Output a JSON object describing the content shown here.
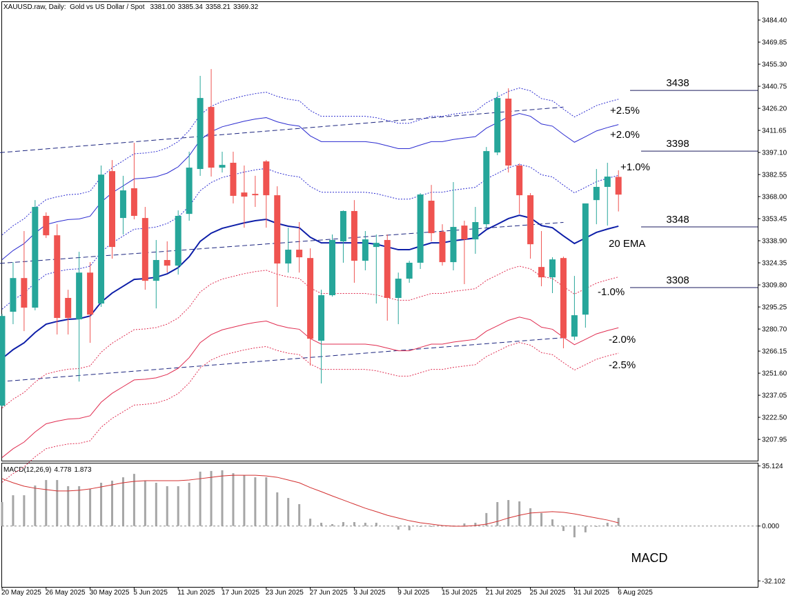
{
  "chart_data": [
    {
      "type": "candlestick",
      "title": "XAUUSD.raw, Daily:  Gold vs US Dollar / Spot",
      "quote_labels": [
        "3381.00",
        "3385.34",
        "3358.21",
        "3369.32"
      ],
      "categories": [
        "20 May 2025",
        null,
        null,
        null,
        "26 May 2025",
        null,
        null,
        null,
        "30 May 2025",
        null,
        null,
        null,
        "5 Jun 2025",
        null,
        null,
        null,
        "11 Jun 2025",
        null,
        null,
        null,
        "17 Jun 2025",
        null,
        null,
        null,
        "23 Jun 2025",
        null,
        null,
        null,
        "27 Jun 2025",
        null,
        null,
        null,
        "3 Jul 2025",
        null,
        null,
        null,
        "9 Jul 2025",
        null,
        null,
        null,
        "15 Jul 2025",
        null,
        null,
        null,
        "21 Jul 2025",
        null,
        null,
        null,
        "25 Jul 2025",
        null,
        null,
        null,
        "31 Jul 2025",
        null,
        null,
        null,
        "6 Aug 2025"
      ],
      "series": [
        {
          "up_color": "#26a69a",
          "down_color": "#ef5350",
          "open": [
            3230.2,
            3292.1,
            3314.3,
            3294.8,
            3355.3,
            3342.5,
            3301.2,
            3287.1,
            3317.9,
            3297.5,
            3384.8,
            3353.9,
            3373.5,
            3353.9,
            3312.5,
            3326.2,
            3322.5,
            3356.6,
            3386.2,
            3427.1,
            3387.1,
            3390.3,
            3370.7,
            3369.8,
            3391.2,
            3368.9,
            3323.9,
            3333.0,
            3327.5,
            3273.0,
            3303.0,
            3338.5,
            3358.5,
            3325.7,
            3334.8,
            3339.4,
            3301.2,
            3313.9,
            3324.4,
            3365.3,
            3344.8,
            3324.8,
            3348.9,
            3339.8,
            3349.8,
            3397.1,
            3432.6,
            3388.5,
            3368.9,
            3321.6,
            3314.8,
            3327.5,
            3275.7,
            3290.2,
            3365.7,
            3374.4,
            3381.0
          ],
          "high": [
            3290.7,
            3324.8,
            3345.3,
            3365.7,
            3357.6,
            3349.8,
            3306.6,
            3331.6,
            3324.8,
            3388.5,
            3392.1,
            3381.7,
            3403.5,
            3361.2,
            3339.4,
            3338.5,
            3358.9,
            3397.6,
            3447.6,
            3452.1,
            3397.6,
            3397.6,
            3388.5,
            3381.7,
            3392.1,
            3374.8,
            3347.5,
            3351.2,
            3333.9,
            3306.6,
            3343.0,
            3358.9,
            3365.7,
            3345.3,
            3343.0,
            3343.0,
            3317.9,
            3325.7,
            3370.3,
            3375.7,
            3349.8,
            3377.6,
            3352.1,
            3361.2,
            3400.7,
            3437.1,
            3439.4,
            3389.8,
            3370.3,
            3345.3,
            3328.0,
            3328.4,
            3315.7,
            3363.5,
            3386.2,
            3390.3,
            3385.34
          ],
          "low": [
            3229.3,
            3283.9,
            3279.3,
            3293.0,
            3340.7,
            3277.1,
            3277.1,
            3246.1,
            3271.6,
            3295.3,
            3327.1,
            3343.0,
            3353.0,
            3306.6,
            3294.3,
            3317.9,
            3316.6,
            3352.1,
            3381.7,
            3381.2,
            3383.9,
            3363.5,
            3347.5,
            3361.2,
            3347.5,
            3295.3,
            3317.9,
            3317.9,
            3256.6,
            3244.8,
            3302.1,
            3324.4,
            3311.2,
            3319.4,
            3297.5,
            3286.2,
            3283.9,
            3311.2,
            3320.3,
            3338.5,
            3322.5,
            3319.4,
            3310.3,
            3330.3,
            3347.5,
            3395.3,
            3383.9,
            3356.6,
            3327.1,
            3308.9,
            3304.4,
            3268.0,
            3273.4,
            3281.6,
            3349.8,
            3348.9,
            3358.21
          ],
          "close": [
            3289.3,
            3314.3,
            3294.8,
            3361.2,
            3342.5,
            3288.0,
            3288.0,
            3317.9,
            3290.2,
            3382.5,
            3334.8,
            3372.1,
            3355.3,
            3312.5,
            3326.2,
            3322.5,
            3355.3,
            3387.1,
            3433.0,
            3387.1,
            3388.9,
            3368.5,
            3368.0,
            3368.9,
            3368.9,
            3323.9,
            3333.0,
            3328.0,
            3274.3,
            3303.0,
            3339.4,
            3358.5,
            3325.7,
            3339.8,
            3337.5,
            3301.2,
            3313.9,
            3324.4,
            3369.4,
            3343.9,
            3324.8,
            3348.0,
            3339.8,
            3351.2,
            3398.0,
            3433.0,
            3388.5,
            3368.9,
            3336.6,
            3314.8,
            3326.6,
            3274.8,
            3289.8,
            3363.5,
            3374.4,
            3381.2,
            3369.32
          ]
        }
      ],
      "ema": {
        "name": "20 EMA",
        "color": "#0d1ea8",
        "values": [
          3261.2,
          3267.1,
          3271.6,
          3278.4,
          3283.9,
          3285.7,
          3287.1,
          3287.5,
          3289.3,
          3298.4,
          3304.4,
          3308.9,
          3313.4,
          3313.9,
          3314.8,
          3317.1,
          3321.2,
          3328.4,
          3338.5,
          3343.9,
          3347.1,
          3348.9,
          3350.7,
          3352.1,
          3353.0,
          3350.3,
          3348.5,
          3347.5,
          3341.2,
          3337.5,
          3337.5,
          3337.5,
          3337.5,
          3337.5,
          3336.6,
          3334.8,
          3333.0,
          3333.0,
          3335.3,
          3337.5,
          3337.5,
          3338.9,
          3339.8,
          3340.7,
          3346.2,
          3349.8,
          3353.5,
          3355.7,
          3353.9,
          3348.9,
          3347.5,
          3342.1,
          3337.1,
          3340.7,
          3344.4,
          3346.6,
          3348.5
        ]
      },
      "envelopes": [
        {
          "pct": 2.5,
          "label": "+2.5%",
          "color": "#2a2ad0",
          "dash": "dotted"
        },
        {
          "pct": 2.0,
          "label": "+2.0%",
          "color": "#2a2ad0",
          "dash": "solid"
        },
        {
          "pct": 1.0,
          "label": "+1.0%",
          "color": "#2a2ad0",
          "dash": "dotted"
        },
        {
          "pct": -1.0,
          "label": "-1.0%",
          "color": "#e02b4f",
          "dash": "dotted"
        },
        {
          "pct": -2.0,
          "label": "-2.0%",
          "color": "#e02b4f",
          "dash": "solid"
        },
        {
          "pct": -2.5,
          "label": "-2.5%",
          "color": "#e02b4f",
          "dash": "dotted"
        }
      ],
      "trendlines": [
        {
          "x": [
            0,
            51
          ],
          "values": [
            3397,
            3427
          ]
        },
        {
          "x": [
            0,
            51
          ],
          "values": [
            3324,
            3351
          ]
        },
        {
          "x": [
            0,
            51
          ],
          "values": [
            3246,
            3275
          ]
        }
      ],
      "levels": [
        3438,
        3398,
        3348,
        3308
      ],
      "ylim": [
        3193.9,
        3496.7
      ],
      "yticks": [
        {
          "value": 3484.4,
          "label": "3484.40"
        },
        {
          "value": 3469.85,
          "label": "3469.85"
        },
        {
          "value": 3455.3,
          "label": "3455.30"
        },
        {
          "value": 3440.75,
          "label": "3440.75"
        },
        {
          "value": 3426.2,
          "label": "3426.20"
        },
        {
          "value": 3411.65,
          "label": "3411.65"
        },
        {
          "value": 3397.1,
          "label": "3397.10"
        },
        {
          "value": 3382.55,
          "label": "3382.55"
        },
        {
          "value": 3368,
          "label": "3368.00"
        },
        {
          "value": 3353.45,
          "label": "3353.45"
        },
        {
          "value": 3338.9,
          "label": "3338.90"
        },
        {
          "value": 3324.35,
          "label": "3324.35"
        },
        {
          "value": 3309.8,
          "label": "3309.80"
        },
        {
          "value": 3295.25,
          "label": "3295.25"
        },
        {
          "value": 3280.7,
          "label": "3280.70"
        },
        {
          "value": 3266.15,
          "label": "3266.15"
        },
        {
          "value": 3251.6,
          "label": "3251.60"
        },
        {
          "value": 3237.05,
          "label": "3237.05"
        },
        {
          "value": 3222.5,
          "label": "3222.50"
        },
        {
          "value": 3207.95,
          "label": "3207.95"
        }
      ]
    },
    {
      "type": "macd",
      "title": "MACD(12,26,9)",
      "annotation": "MACD",
      "series": [
        {
          "color": "#a6a6a6",
          "values": [
            14.0,
            18.0,
            18.0,
            23.7,
            26.9,
            26.9,
            23.3,
            23.3,
            21.7,
            25.3,
            26.5,
            28.5,
            30.5,
            26.5,
            25.3,
            23.3,
            23.3,
            25.3,
            31.8,
            32.2,
            32.6,
            30.9,
            29.7,
            28.5,
            28.5,
            19.7,
            16.4,
            12.8,
            4.3,
            1.9,
            1.1,
            2.3,
            2.3,
            1.9,
            1.9,
            0.2,
            -2.1,
            -2.5,
            -0.5,
            -0.5,
            -0.1,
            0.3,
            1.5,
            1.9,
            7.6,
            14.0,
            15.2,
            14.4,
            10.4,
            7.6,
            3.9,
            -2.9,
            -6.6,
            -3.7,
            -0.5,
            1.9,
            4.778
          ]
        },
        {
          "color": "#d32f2f",
          "values": [
            27.7,
            25.3,
            23.3,
            22.1,
            21.3,
            20.5,
            20.5,
            20.9,
            21.7,
            22.9,
            24.1,
            25.3,
            26.1,
            26.5,
            26.5,
            26.5,
            26.5,
            26.9,
            27.7,
            28.5,
            29.3,
            29.7,
            29.7,
            29.7,
            29.3,
            28.5,
            26.9,
            25.3,
            22.5,
            20.1,
            17.6,
            15.2,
            12.8,
            10.4,
            8.4,
            6.3,
            4.7,
            3.1,
            1.9,
            1.1,
            0.3,
            -0.1,
            -0.1,
            0.3,
            1.1,
            2.7,
            4.7,
            6.3,
            7.6,
            8.0,
            8.4,
            8.0,
            7.1,
            5.9,
            4.7,
            3.5,
            1.873
          ]
        }
      ],
      "ylim": [
        -35.6,
        37.0
      ],
      "yticks": [
        35.124,
        {
          "value": 0,
          "label": "0.000"
        },
        -32.102
      ]
    }
  ]
}
